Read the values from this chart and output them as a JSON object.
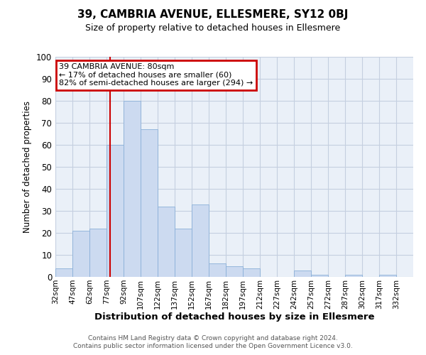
{
  "title": "39, CAMBRIA AVENUE, ELLESMERE, SY12 0BJ",
  "subtitle": "Size of property relative to detached houses in Ellesmere",
  "xlabel": "Distribution of detached houses by size in Ellesmere",
  "ylabel": "Number of detached properties",
  "bar_color": "#ccdaf0",
  "bar_edge_color": "#8ab0d8",
  "grid_color": "#c5cfe0",
  "background_color": "#eaf0f8",
  "vline_x": 80,
  "vline_color": "#cc0000",
  "bin_edges": [
    32,
    47,
    62,
    77,
    92,
    107,
    122,
    137,
    152,
    167,
    182,
    197,
    212,
    227,
    242,
    257,
    272,
    287,
    302,
    317,
    332,
    347
  ],
  "counts": [
    4,
    21,
    22,
    60,
    80,
    67,
    32,
    22,
    33,
    6,
    5,
    4,
    0,
    0,
    3,
    1,
    0,
    1,
    0,
    1,
    0
  ],
  "ylim": [
    0,
    100
  ],
  "yticks": [
    0,
    10,
    20,
    30,
    40,
    50,
    60,
    70,
    80,
    90,
    100
  ],
  "annotation_line1": "39 CAMBRIA AVENUE: 80sqm",
  "annotation_line2": "← 17% of detached houses are smaller (60)",
  "annotation_line3": "82% of semi-detached houses are larger (294) →",
  "annotation_box_color": "#cc0000",
  "footer_line1": "Contains HM Land Registry data © Crown copyright and database right 2024.",
  "footer_line2": "Contains public sector information licensed under the Open Government Licence v3.0."
}
